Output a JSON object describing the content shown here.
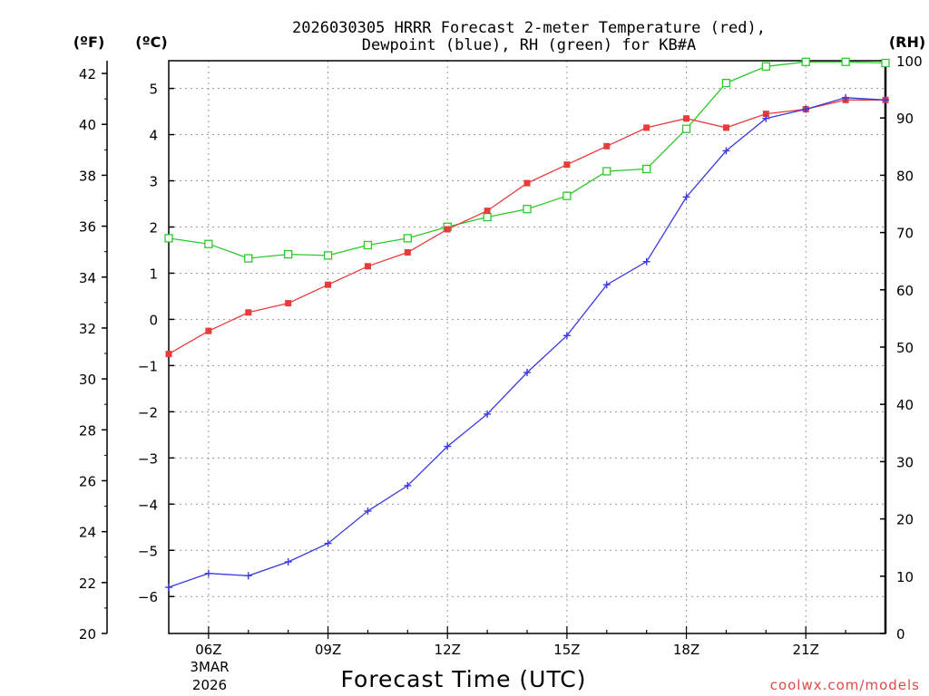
{
  "chart_data": {
    "type": "line",
    "title_lines": [
      "2026030305 HRRR Forecast 2-meter Temperature (red),",
      "Dewpoint (blue), RH (green) for KB#A"
    ],
    "unit_labels": {
      "fahrenheit": "(ºF)",
      "celsius": "(ºC)",
      "rh": "(RH)"
    },
    "xlabel": "Forecast Time (UTC)",
    "credit": "coolwx.com/models",
    "x_hours": [
      5,
      6,
      7,
      8,
      9,
      10,
      11,
      12,
      13,
      14,
      15,
      16,
      17,
      18,
      19,
      20,
      21,
      22,
      23
    ],
    "x_range": [
      5,
      23
    ],
    "x_ticks": [
      {
        "hour": 6,
        "label": "06Z"
      },
      {
        "hour": 9,
        "label": "09Z"
      },
      {
        "hour": 12,
        "label": "12Z"
      },
      {
        "hour": 15,
        "label": "15Z"
      },
      {
        "hour": 18,
        "label": "18Z"
      },
      {
        "hour": 21,
        "label": "21Z"
      }
    ],
    "date_label": [
      "3MAR",
      "2026"
    ],
    "celsius_axis": {
      "range": [
        -6.8,
        5.6
      ],
      "ticks": [
        -6,
        -5,
        -4,
        -3,
        -2,
        -1,
        0,
        1,
        2,
        3,
        4,
        5
      ]
    },
    "fahrenheit_axis": {
      "range": [
        20,
        42.5
      ],
      "ticks": [
        20,
        22,
        24,
        26,
        28,
        30,
        32,
        34,
        36,
        38,
        40,
        42
      ]
    },
    "rh_axis": {
      "range": [
        0,
        100
      ],
      "ticks": [
        0,
        10,
        20,
        30,
        40,
        50,
        60,
        70,
        80,
        90,
        100
      ]
    },
    "series": [
      {
        "name": "Temperature",
        "axis": "celsius",
        "color": "#e83c3c",
        "marker": "filled-square",
        "values": [
          -0.75,
          -0.25,
          0.15,
          0.35,
          0.75,
          1.15,
          1.45,
          1.95,
          2.35,
          2.95,
          3.35,
          3.75,
          4.15,
          4.35,
          4.15,
          4.45,
          4.55,
          4.75,
          4.75
        ]
      },
      {
        "name": "Dewpoint",
        "axis": "celsius",
        "color": "#3a3ae0",
        "marker": "plus",
        "values": [
          -5.8,
          -5.5,
          -5.55,
          -5.25,
          -4.85,
          -4.15,
          -3.6,
          -2.75,
          -2.05,
          -1.15,
          -0.35,
          0.75,
          1.25,
          2.65,
          3.65,
          4.35,
          4.55,
          4.8,
          4.75
        ]
      },
      {
        "name": "RH",
        "axis": "rh",
        "color": "#2ec82e",
        "marker": "open-square",
        "values": [
          69,
          68,
          65.5,
          66.2,
          66,
          67.8,
          69,
          71,
          72.7,
          74.1,
          76.4,
          80.7,
          81.1,
          88.1,
          96.1,
          99,
          99.8,
          99.8,
          99.6
        ]
      }
    ]
  }
}
